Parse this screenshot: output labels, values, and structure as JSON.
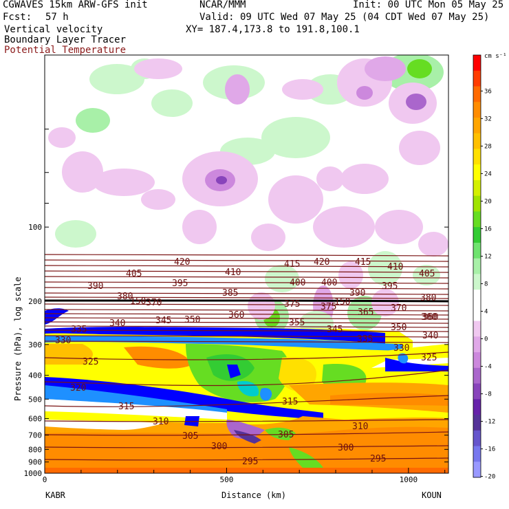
{
  "header": {
    "model": "CGWAVES 15km ARW-GFS init",
    "org": "NCAR/MMM",
    "init": "Init: 00 UTC Mon 05 May 25",
    "fcst_label": "Fcst:",
    "fcst_value": "57 h",
    "valid": "Valid: 09 UTC Wed 07 May 25 (04 CDT Wed 07 May 25)",
    "field1": "Vertical velocity",
    "field2": "Boundary Layer Tracer",
    "field3": "Potential Temperature",
    "xy": "XY= 187.4,173.8 to 191.8,100.1",
    "field3_color": "#8b1a1a"
  },
  "chart_data": {
    "type": "heatmap",
    "title": "Vertical velocity / Boundary Layer Tracer / Potential Temperature cross section",
    "xlabel": "Distance (km)",
    "ylabel": "Pressure (hPa), log scale",
    "x_ticks": [
      "0",
      "500",
      "1000"
    ],
    "xlim": [
      0,
      1110
    ],
    "y_scale": "log",
    "y_ticks": [
      "100",
      "200",
      "300",
      "400",
      "500",
      "600",
      "700",
      "800",
      "900",
      "1000"
    ],
    "ylim": [
      1000,
      20
    ],
    "left_station": "KABR",
    "right_station": "KOUN",
    "colorbar": {
      "unit": "cm s⁻¹",
      "labels": [
        "36",
        "32",
        "28",
        "24",
        "20",
        "16",
        "12",
        "8",
        "4",
        "0",
        "-4",
        "-8",
        "-12",
        "-16",
        "-20"
      ],
      "colors": [
        "#ff0000",
        "#ff3c00",
        "#ff6a00",
        "#ff8c00",
        "#ffa500",
        "#ffc000",
        "#ffe000",
        "#ffff00",
        "#d4f000",
        "#a0e400",
        "#66dd22",
        "#33cc33",
        "#6fe36f",
        "#a8f0a8",
        "#ccf7cc",
        "#ffffff",
        "#ffffff",
        "#f0c8f0",
        "#e0a8e8",
        "#cc88dd",
        "#aa66cc",
        "#8844bb",
        "#6622aa",
        "#553399",
        "#6655cc",
        "#7777ee",
        "#9999ff"
      ]
    },
    "theta_labels": [
      "420",
      "415",
      "420",
      "415",
      "410",
      "405",
      "410",
      "405",
      "390",
      "395",
      "400",
      "400",
      "390",
      "395",
      "385",
      "380",
      "370",
      "375",
      "375",
      "370",
      "380",
      "360",
      "365",
      "360",
      "335",
      "340",
      "345",
      "350",
      "355",
      "345",
      "350",
      "340",
      "330",
      "335",
      "330",
      "325",
      "325",
      "320",
      "315",
      "315",
      "310",
      "310",
      "305",
      "305",
      "300",
      "300",
      "295",
      "295",
      "360",
      "150",
      "150"
    ]
  }
}
